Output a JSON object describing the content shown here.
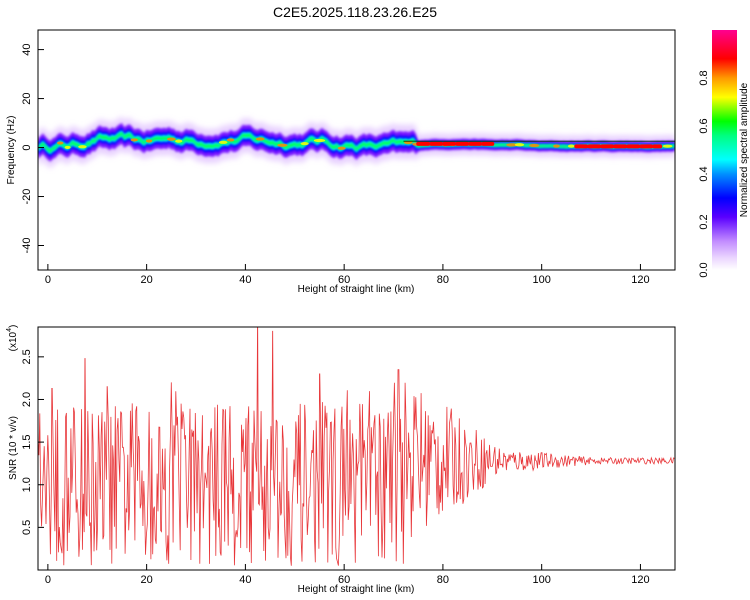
{
  "title": "C2E5.2025.118.23.26.E25",
  "chart_data": [
    {
      "type": "heatmap",
      "xlabel": "Height of straight line (km)",
      "ylabel": "Frequency (Hz)",
      "xlim": [
        -2,
        127
      ],
      "ylim": [
        -50,
        48
      ],
      "xticks": [
        0,
        20,
        40,
        60,
        80,
        100,
        120
      ],
      "yticks": [
        -40,
        -20,
        0,
        20,
        40
      ],
      "grid": false,
      "colorbar": {
        "label": "Normalized spectral amplitude",
        "range": [
          0,
          1
        ],
        "ticks": [
          "0.0",
          "0.2",
          "0.4",
          "0.6",
          "0.8"
        ],
        "colors": [
          "#ffffff",
          "#d9b3ff",
          "#6a00ff",
          "#0000ff",
          "#00ffff",
          "#00ff00",
          "#ffff00",
          "#ff8800",
          "#ff0000",
          "#ff0088"
        ]
      },
      "trend": {
        "x": [
          -1,
          5,
          10,
          15,
          20,
          25,
          30,
          35,
          40,
          45,
          50,
          55,
          60,
          65,
          70,
          75,
          80,
          85,
          90,
          95,
          100,
          105,
          110,
          115,
          120,
          126
        ],
        "y": [
          0.5,
          1.0,
          3.5,
          3.0,
          2.5,
          4.0,
          2.5,
          3.0,
          3.5,
          2.5,
          2.0,
          2.5,
          1.0,
          0.5,
          0.5,
          1.0,
          1.5,
          1.5,
          1.0,
          1.0,
          0.5,
          0.5,
          0.5,
          0.5,
          0.5,
          0.5
        ]
      },
      "peak_segments": [
        {
          "x": [
            75,
            90
          ],
          "y": 1.5
        },
        {
          "x": [
            107,
            124
          ],
          "y": 0.5
        }
      ]
    },
    {
      "type": "line",
      "xlabel": "Height of straight line (km)",
      "ylabel": "SNR (10 * v/v)",
      "scale_label": "(x10",
      "scale_exponent": "4",
      "xlim": [
        -2,
        127
      ],
      "ylim": [
        0,
        2.85
      ],
      "xticks": [
        0,
        20,
        40,
        60,
        80,
        100,
        120
      ],
      "yticks": [
        "0.5",
        "1.0",
        "1.5",
        "2.0",
        "2.5"
      ],
      "series_color": "#e8373a",
      "baseline": 1.28,
      "spikes": [
        {
          "x": 0.8,
          "y": 2.13
        },
        {
          "x": 7.5,
          "y": 2.48
        },
        {
          "x": 12,
          "y": 2.15
        },
        {
          "x": 25,
          "y": 2.2
        },
        {
          "x": 42.5,
          "y": 2.85
        },
        {
          "x": 45.5,
          "y": 2.8
        },
        {
          "x": 55,
          "y": 2.3
        },
        {
          "x": 71,
          "y": 2.35
        }
      ]
    }
  ]
}
